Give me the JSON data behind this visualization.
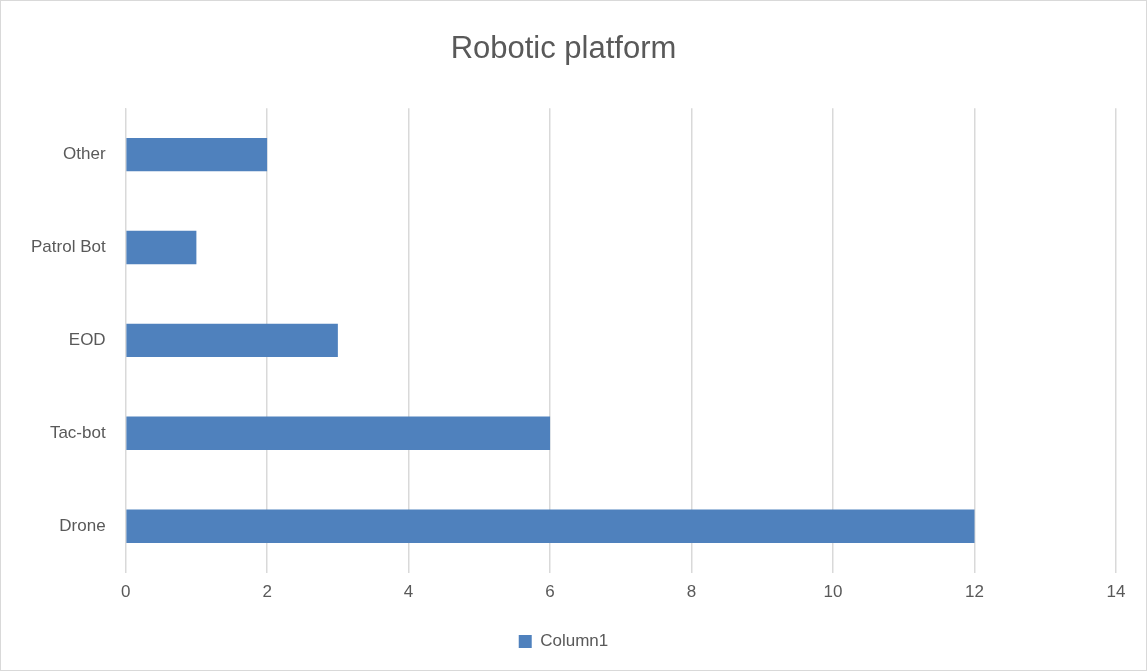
{
  "chart_data": {
    "type": "bar",
    "orientation": "horizontal",
    "title": "Robotic platform",
    "categories": [
      "Other",
      "Patrol Bot",
      "EOD",
      "Tac-bot",
      "Drone"
    ],
    "series": [
      {
        "name": "Column1",
        "color": "#4f81bd",
        "values": [
          2,
          1,
          3,
          6,
          12
        ]
      }
    ],
    "xlim": [
      0,
      14
    ],
    "xticks": [
      0,
      2,
      4,
      6,
      8,
      10,
      12,
      14
    ],
    "grid": "x",
    "legend": "bottom"
  }
}
